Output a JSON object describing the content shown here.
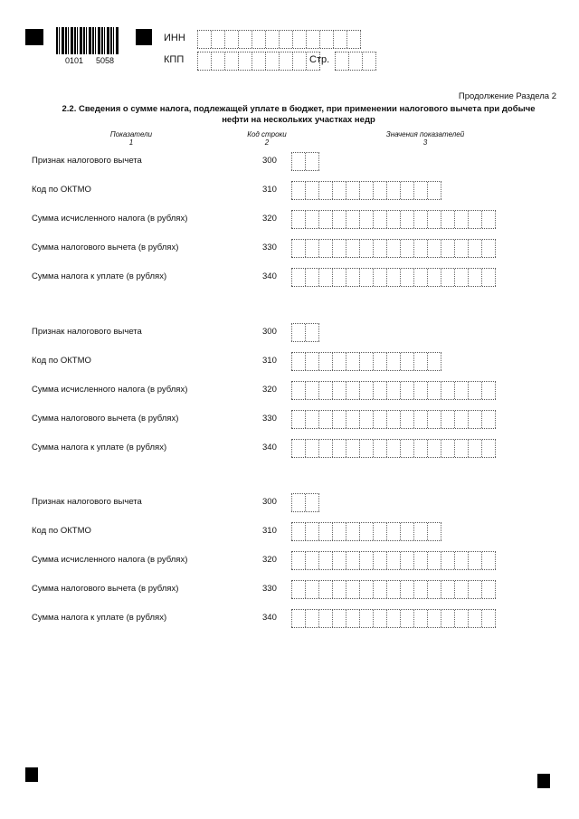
{
  "header": {
    "barcode_left": "0101",
    "barcode_right": "5058",
    "inn_label": "ИНН",
    "kpp_label": "КПП",
    "page_label": "Стр."
  },
  "continuation": "Продолжение Раздела 2",
  "section_title": "2.2. Сведения о сумме налога, подлежащей уплате в бюджет, при применении налогового вычета при добыче нефти на нескольких участках недр",
  "columns": [
    {
      "label": "Показатели",
      "num": "1"
    },
    {
      "label": "Код строки",
      "num": "2"
    },
    {
      "label": "Значения показателей",
      "num": "3"
    }
  ],
  "blocks": [
    {
      "rows": [
        {
          "label": "Признак налогового вычета",
          "code": "300"
        },
        {
          "label": "Код по ОКТМО",
          "code": "310"
        },
        {
          "label": "Сумма исчисленного налога (в рублях)",
          "code": "320"
        },
        {
          "label": "Сумма налогового вычета (в рублях)",
          "code": "330"
        },
        {
          "label": "Сумма налога к уплате (в рублях)",
          "code": "340"
        }
      ]
    },
    {
      "rows": [
        {
          "label": "Признак налогового вычета",
          "code": "300"
        },
        {
          "label": "Код по ОКТМО",
          "code": "310"
        },
        {
          "label": "Сумма исчисленного налога (в рублях)",
          "code": "320"
        },
        {
          "label": "Сумма налогового вычета (в рублях)",
          "code": "330"
        },
        {
          "label": "Сумма налога к уплате (в рублях)",
          "code": "340"
        }
      ]
    },
    {
      "rows": [
        {
          "label": "Признак налогового вычета",
          "code": "300"
        },
        {
          "label": "Код по ОКТМО",
          "code": "310"
        },
        {
          "label": "Сумма исчисленного налога (в рублях)",
          "code": "320"
        },
        {
          "label": "Сумма налогового вычета (в рублях)",
          "code": "330"
        },
        {
          "label": "Сумма налога к уплате (в рублях)",
          "code": "340"
        }
      ]
    }
  ]
}
